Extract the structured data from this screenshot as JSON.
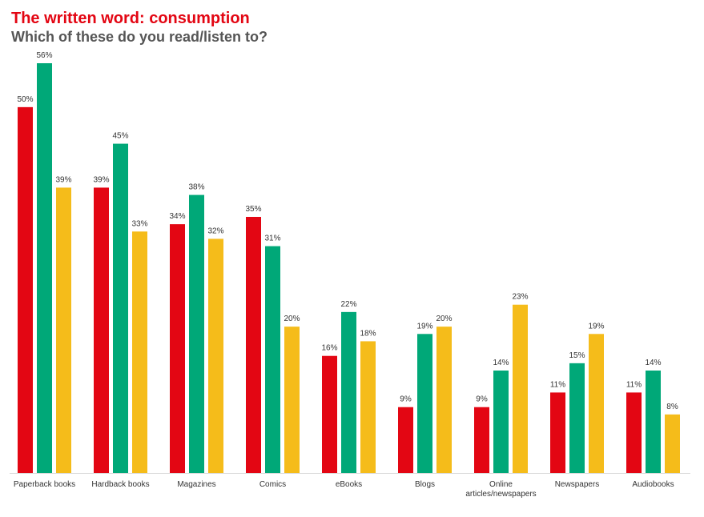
{
  "header": {
    "title": "The written word: consumption",
    "subtitle": "Which of these do you read/listen to?"
  },
  "chart_data": {
    "type": "bar",
    "title": "The written word: consumption",
    "subtitle": "Which of these do you read/listen to?",
    "categories": [
      "Paperback books",
      "Hardback books",
      "Magazines",
      "Comics",
      "eBooks",
      "Blogs",
      "Online articles/newspapers",
      "Newspapers",
      "Audiobooks"
    ],
    "category_lines": [
      [
        "Paperback books"
      ],
      [
        "Hardback books"
      ],
      [
        "Magazines"
      ],
      [
        "Comics"
      ],
      [
        "eBooks"
      ],
      [
        "Blogs"
      ],
      [
        "Online",
        "articles/newspapers"
      ],
      [
        "Newspapers"
      ],
      [
        "Audiobooks"
      ]
    ],
    "series": [
      {
        "color": "#e30613",
        "values": [
          50,
          39,
          34,
          35,
          16,
          9,
          9,
          11,
          11
        ],
        "labels": [
          "50%",
          "39%",
          "34%",
          "35%",
          "16%",
          "9%",
          "9%",
          "11%",
          "11%"
        ]
      },
      {
        "color": "#00a878",
        "values": [
          56,
          45,
          38,
          31,
          22,
          19,
          14,
          15,
          14
        ],
        "labels": [
          "56%",
          "45%",
          "38%",
          "31%",
          "22%",
          "19%",
          "14%",
          "15%",
          "14%"
        ]
      },
      {
        "color": "#f5bc1a",
        "values": [
          39,
          33,
          32,
          20,
          18,
          20,
          23,
          19,
          8
        ],
        "labels": [
          "39%",
          "33%",
          "32%",
          "20%",
          "18%",
          "20%",
          "23%",
          "19%",
          "8%"
        ]
      }
    ],
    "ylim": [
      0,
      56
    ],
    "grid": false,
    "legend": "none",
    "xlabel": "",
    "ylabel": ""
  }
}
